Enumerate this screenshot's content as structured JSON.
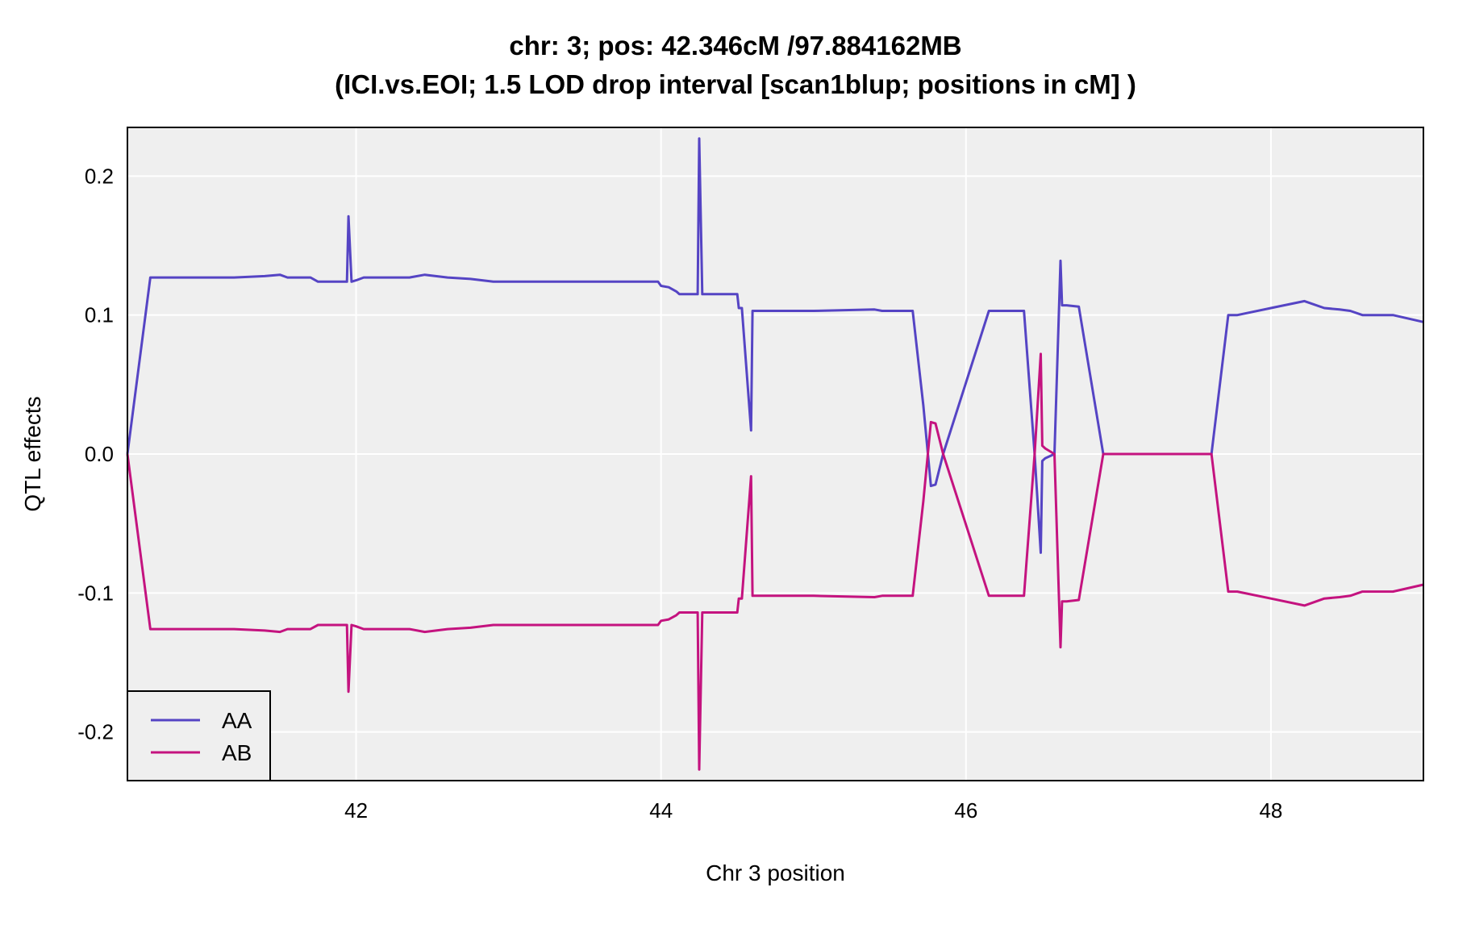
{
  "chart_data": {
    "type": "line",
    "title": "chr: 3; pos: 42.346cM /97.884162MB",
    "subtitle": "(ICI.vs.EOI; 1.5 LOD drop interval [scan1blup; positions in cM] )",
    "xlabel": "Chr 3 position",
    "ylabel": "QTL effects",
    "xlim": [
      40.5,
      49.0
    ],
    "ylim": [
      -0.235,
      0.235
    ],
    "xticks": [
      42,
      44,
      46,
      48
    ],
    "yticks": [
      -0.2,
      -0.1,
      0.0,
      0.1,
      0.2
    ],
    "ytick_labels": [
      "-0.2",
      "-0.1",
      "0.0",
      "0.1",
      "0.2"
    ],
    "grid": true,
    "background": "#efefef",
    "legend_position": "bottom-left",
    "x": [
      40.5,
      40.65,
      40.8,
      41.0,
      41.2,
      41.4,
      41.5,
      41.55,
      41.6,
      41.7,
      41.75,
      41.9,
      41.94,
      41.95,
      41.97,
      42.0,
      42.05,
      42.2,
      42.35,
      42.45,
      42.6,
      42.75,
      42.9,
      43.2,
      43.5,
      43.7,
      43.8,
      43.9,
      43.98,
      44.0,
      44.05,
      44.1,
      44.12,
      44.24,
      44.25,
      44.27,
      44.3,
      44.5,
      44.51,
      44.53,
      44.59,
      44.6,
      44.8,
      45.0,
      45.4,
      45.45,
      45.6,
      45.65,
      45.72,
      45.77,
      45.8,
      45.85,
      46.15,
      46.2,
      46.38,
      46.45,
      46.49,
      46.5,
      46.52,
      46.58,
      46.62,
      46.63,
      46.66,
      46.74,
      46.9,
      47.3,
      47.61,
      47.72,
      47.78,
      48.0,
      48.22,
      48.35,
      48.45,
      48.52,
      48.6,
      48.7,
      48.8,
      49.0
    ],
    "series": [
      {
        "name": "AA",
        "color": "#5544c4",
        "values": [
          0.0,
          0.127,
          0.127,
          0.127,
          0.127,
          0.128,
          0.129,
          0.127,
          0.127,
          0.127,
          0.124,
          0.124,
          0.124,
          0.171,
          0.124,
          0.125,
          0.127,
          0.127,
          0.127,
          0.129,
          0.127,
          0.126,
          0.124,
          0.124,
          0.124,
          0.124,
          0.124,
          0.124,
          0.124,
          0.121,
          0.12,
          0.117,
          0.115,
          0.115,
          0.227,
          0.115,
          0.115,
          0.115,
          0.105,
          0.105,
          0.017,
          0.103,
          0.103,
          0.103,
          0.104,
          0.103,
          0.103,
          0.103,
          0.035,
          -0.023,
          -0.022,
          0.0,
          0.103,
          0.103,
          0.103,
          0.0,
          -0.071,
          -0.005,
          -0.003,
          0.0,
          0.139,
          0.107,
          0.107,
          0.106,
          0.0,
          0.0,
          0.0,
          0.1,
          0.1,
          0.105,
          0.11,
          0.105,
          0.104,
          0.103,
          0.1,
          0.1,
          0.1,
          0.095
        ]
      },
      {
        "name": "AB",
        "color": "#c4137f",
        "values": [
          0.0,
          -0.126,
          -0.126,
          -0.126,
          -0.126,
          -0.127,
          -0.128,
          -0.126,
          -0.126,
          -0.126,
          -0.123,
          -0.123,
          -0.123,
          -0.171,
          -0.123,
          -0.124,
          -0.126,
          -0.126,
          -0.126,
          -0.128,
          -0.126,
          -0.125,
          -0.123,
          -0.123,
          -0.123,
          -0.123,
          -0.123,
          -0.123,
          -0.123,
          -0.12,
          -0.119,
          -0.116,
          -0.114,
          -0.114,
          -0.227,
          -0.114,
          -0.114,
          -0.114,
          -0.104,
          -0.104,
          -0.016,
          -0.102,
          -0.102,
          -0.102,
          -0.103,
          -0.102,
          -0.102,
          -0.102,
          -0.034,
          0.023,
          0.022,
          0.0,
          -0.102,
          -0.102,
          -0.102,
          0.0,
          0.072,
          0.006,
          0.004,
          0.0,
          -0.139,
          -0.106,
          -0.106,
          -0.105,
          0.0,
          0.0,
          0.0,
          -0.099,
          -0.099,
          -0.104,
          -0.109,
          -0.104,
          -0.103,
          -0.102,
          -0.099,
          -0.099,
          -0.099,
          -0.094
        ]
      }
    ]
  }
}
